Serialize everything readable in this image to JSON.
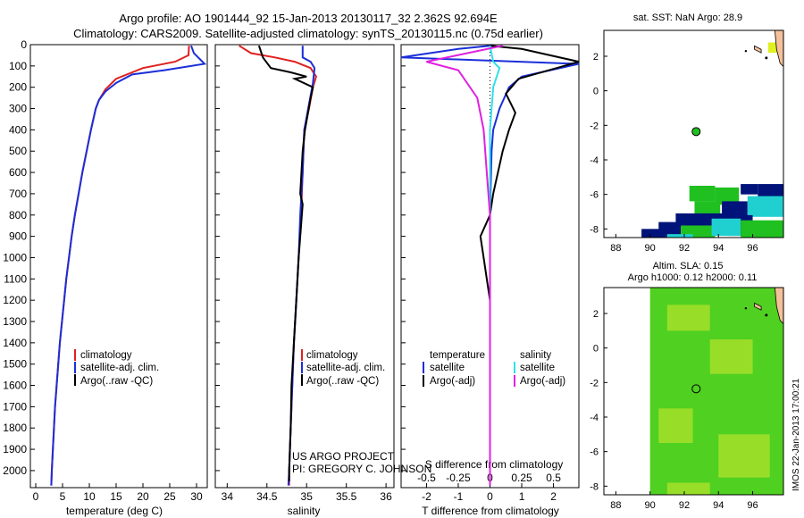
{
  "header": {
    "line1": "Argo profile: AO 1901444_92 15-Jan-2013 20130117_32 2.362S 92.694E",
    "line2": "Climatology: CARS2009. Satellite-adjusted climatology: synTS_20130115.nc (0.75d earlier)"
  },
  "credit": {
    "project": "US ARGO PROJECT",
    "pi": "PI: GREGORY C. JOHNSON",
    "imos": "IMOS 22-Jan-2013 17:00:21"
  },
  "colors": {
    "climatology": "#e02020",
    "satellite_clim": "#1a2fd8",
    "argo": "#000000",
    "salinity_sat": "#30e0e8",
    "salinity_argo": "#e020e0",
    "land": "#f5c09a",
    "sst_deep": "#00137a",
    "sst_green": "#20c020",
    "sst_cyan": "#20d0d0",
    "sla_yellow": "#c8e830",
    "sla_green": "#50d020",
    "marker": "#20c020"
  },
  "chart_data": [
    {
      "name": "temperature",
      "type": "line",
      "xlabel": "temperature (deg C)",
      "xlim": [
        -1,
        32
      ],
      "xticks": [
        "0",
        "5",
        "10",
        "15",
        "20",
        "25",
        "30"
      ],
      "xtick_values": [
        0,
        5,
        10,
        15,
        20,
        25,
        30
      ],
      "ylim": [
        0,
        2080
      ],
      "yticks": [
        "0",
        "100",
        "200",
        "300",
        "400",
        "500",
        "600",
        "700",
        "800",
        "900",
        "1000",
        "1100",
        "1200",
        "1300",
        "1400",
        "1500",
        "1600",
        "1700",
        "1800",
        "1900",
        "2000"
      ],
      "ytick_values": [
        0,
        100,
        200,
        300,
        400,
        500,
        600,
        700,
        800,
        900,
        1000,
        1100,
        1200,
        1300,
        1400,
        1500,
        1600,
        1700,
        1800,
        1900,
        2000
      ],
      "legend": [
        "climatology",
        "satellite-adj. clim.",
        "Argo(..raw -QC)"
      ],
      "series": [
        {
          "name": "climatology",
          "color": "climatology",
          "points": [
            [
              28.6,
              5
            ],
            [
              28.5,
              50
            ],
            [
              26,
              80
            ],
            [
              20,
              110
            ],
            [
              15,
              160
            ],
            [
              13,
              210
            ],
            [
              11.8,
              260
            ],
            [
              11.2,
              300
            ],
            [
              10.3,
              400
            ],
            [
              9.5,
              500
            ],
            [
              8.7,
              600
            ],
            [
              8,
              700
            ],
            [
              7.3,
              800
            ],
            [
              6.7,
              900
            ],
            [
              6.2,
              1000
            ],
            [
              5.7,
              1100
            ],
            [
              5.3,
              1200
            ],
            [
              4.9,
              1300
            ],
            [
              4.5,
              1400
            ],
            [
              4.2,
              1500
            ],
            [
              3.9,
              1600
            ],
            [
              3.6,
              1700
            ],
            [
              3.4,
              1800
            ],
            [
              3.2,
              1900
            ],
            [
              3,
              2000
            ],
            [
              2.9,
              2070
            ]
          ]
        },
        {
          "name": "satellite",
          "color": "satellite_clim",
          "points": [
            [
              29,
              5
            ],
            [
              29.5,
              40
            ],
            [
              31.5,
              90
            ],
            [
              24,
              120
            ],
            [
              18,
              140
            ],
            [
              15,
              180
            ],
            [
              13,
              220
            ],
            [
              11.8,
              260
            ],
            [
              11.2,
              300
            ],
            [
              10.3,
              400
            ],
            [
              9.5,
              500
            ],
            [
              8.7,
              600
            ],
            [
              8,
              700
            ],
            [
              7.3,
              800
            ],
            [
              6.7,
              900
            ],
            [
              6.2,
              1000
            ],
            [
              5.7,
              1100
            ],
            [
              5.3,
              1200
            ],
            [
              4.9,
              1300
            ],
            [
              4.5,
              1400
            ],
            [
              4.2,
              1500
            ],
            [
              3.9,
              1600
            ],
            [
              3.6,
              1700
            ],
            [
              3.4,
              1800
            ],
            [
              3.2,
              1900
            ],
            [
              3,
              2000
            ],
            [
              2.9,
              2070
            ]
          ]
        },
        {
          "name": "argo",
          "color": "argo",
          "points": []
        }
      ]
    },
    {
      "name": "salinity",
      "type": "line",
      "xlabel": "salinity",
      "xlim": [
        33.85,
        36.1
      ],
      "xticks": [
        "34",
        "34.5",
        "35",
        "35.5",
        "36"
      ],
      "xtick_values": [
        34,
        34.5,
        35,
        35.5,
        36
      ],
      "ylim": [
        0,
        2080
      ],
      "legend": [
        "climatology",
        "satellite-adj. clim.",
        "Argo(..raw -QC)"
      ],
      "series": [
        {
          "name": "climatology",
          "color": "climatology",
          "points": [
            [
              34.15,
              5
            ],
            [
              34.3,
              40
            ],
            [
              34.6,
              60
            ],
            [
              34.85,
              80
            ],
            [
              35.05,
              110
            ],
            [
              35.12,
              150
            ],
            [
              35.08,
              200
            ],
            [
              35.03,
              300
            ],
            [
              34.97,
              400
            ],
            [
              34.95,
              600
            ],
            [
              34.93,
              800
            ],
            [
              34.9,
              1000
            ],
            [
              34.87,
              1200
            ],
            [
              34.84,
              1400
            ],
            [
              34.82,
              1600
            ],
            [
              34.8,
              1800
            ],
            [
              34.78,
              2000
            ],
            [
              34.78,
              2070
            ]
          ]
        },
        {
          "name": "satellite",
          "color": "satellite_clim",
          "points": [
            [
              34.95,
              5
            ],
            [
              34.95,
              60
            ],
            [
              35.05,
              80
            ],
            [
              35.1,
              110
            ],
            [
              35.08,
              180
            ],
            [
              35.02,
              300
            ],
            [
              34.97,
              400
            ],
            [
              34.95,
              600
            ],
            [
              34.92,
              800
            ],
            [
              34.9,
              1000
            ],
            [
              34.87,
              1200
            ],
            [
              34.84,
              1400
            ],
            [
              34.82,
              1600
            ],
            [
              34.8,
              1800
            ],
            [
              34.78,
              2000
            ],
            [
              34.77,
              2070
            ]
          ]
        },
        {
          "name": "argo",
          "color": "argo",
          "points": [
            [
              34.4,
              5
            ],
            [
              34.45,
              60
            ],
            [
              34.55,
              110
            ],
            [
              34.8,
              130
            ],
            [
              35.0,
              150
            ],
            [
              34.85,
              160
            ],
            [
              35.08,
              200
            ],
            [
              35.05,
              250
            ],
            [
              34.98,
              400
            ],
            [
              34.95,
              500
            ],
            [
              34.92,
              700
            ],
            [
              34.95,
              750
            ],
            [
              34.9,
              1000
            ],
            [
              34.87,
              1200
            ],
            [
              34.84,
              1400
            ],
            [
              34.81,
              1600
            ],
            [
              34.8,
              1800
            ],
            [
              34.78,
              2000
            ],
            [
              34.78,
              2050
            ]
          ]
        }
      ]
    },
    {
      "name": "difference",
      "type": "line",
      "xlabel": "T difference from climatology",
      "x2label": "S difference from climatology",
      "xlim": [
        -2.8,
        2.8
      ],
      "xticks": [
        "-2",
        "-1",
        "0",
        "1",
        "2"
      ],
      "xtick_values": [
        -2,
        -1,
        0,
        1,
        2
      ],
      "x2ticks": [
        "-0.5",
        "-0.25",
        "0",
        "0.25",
        "0.5"
      ],
      "x2tick_values": [
        -0.5,
        -0.25,
        0,
        0.25,
        0.5
      ],
      "ylim": [
        0,
        2080
      ],
      "legend_titles": [
        "temperature",
        "salinity"
      ],
      "legend": [
        "satellite",
        "Argo(-adj)",
        "satellite",
        "Argo(-adj)"
      ],
      "series": [
        {
          "name": "temperature satellite",
          "color": "satellite_clim",
          "points": [
            [
              0,
              5
            ],
            [
              -1,
              20
            ],
            [
              -2.8,
              60
            ],
            [
              2.8,
              90
            ],
            [
              1,
              150
            ],
            [
              0.6,
              200
            ],
            [
              0.3,
              300
            ],
            [
              0.1,
              400
            ],
            [
              0.05,
              500
            ],
            [
              0,
              800
            ],
            [
              0,
              2070
            ]
          ]
        },
        {
          "name": "temperature argo",
          "color": "argo",
          "points": [
            [
              0,
              5
            ],
            [
              1,
              20
            ],
            [
              2.8,
              80
            ],
            [
              0.9,
              160
            ],
            [
              0.5,
              230
            ],
            [
              0.8,
              320
            ],
            [
              0.6,
              400
            ],
            [
              0.4,
              500
            ],
            [
              0.1,
              700
            ],
            [
              0,
              800
            ],
            [
              -0.3,
              900
            ],
            [
              -0.2,
              1000
            ],
            [
              -0.1,
              1100
            ],
            [
              0,
              1200
            ],
            [
              0,
              2070
            ]
          ]
        },
        {
          "name": "salinity satellite",
          "color": "salinity_sat",
          "points": [
            [
              0,
              5
            ],
            [
              0.1,
              80
            ],
            [
              0.3,
              110
            ],
            [
              0.1,
              200
            ],
            [
              0,
              400
            ],
            [
              0,
              2070
            ]
          ]
        },
        {
          "name": "salinity argo",
          "color": "salinity_argo",
          "points": [
            [
              0.4,
              5
            ],
            [
              -2,
              80
            ],
            [
              -1,
              120
            ],
            [
              -0.4,
              250
            ],
            [
              -0.2,
              400
            ],
            [
              -0.1,
              600
            ],
            [
              0,
              800
            ],
            [
              0,
              1000
            ],
            [
              0,
              1400
            ],
            [
              0,
              2070
            ]
          ]
        }
      ]
    },
    {
      "name": "sst_map",
      "type": "heatmap",
      "title": "sat. SST: NaN Argo: 28.9",
      "xlim": [
        87.3,
        97.8
      ],
      "ylim": [
        -8.5,
        3.5
      ],
      "xticks": [
        "88",
        "90",
        "92",
        "94",
        "96"
      ],
      "xtick_values": [
        88,
        90,
        92,
        94,
        96
      ],
      "yticks": [
        "2",
        "0",
        "-2",
        "-4",
        "-6",
        "-8"
      ],
      "ytick_values": [
        2,
        0,
        -2,
        -4,
        -6,
        -8
      ],
      "marker": [
        92.694,
        -2.362
      ]
    },
    {
      "name": "sla_map",
      "type": "heatmap",
      "title": "Altim. SLA: 0.15",
      "subtitle": "Argo h1000: 0.12 h2000: 0.11",
      "xlim": [
        87.3,
        97.8
      ],
      "ylim": [
        -8.5,
        3.5
      ],
      "xticks": [
        "88",
        "90",
        "92",
        "94",
        "96"
      ],
      "xtick_values": [
        88,
        90,
        92,
        94,
        96
      ],
      "yticks": [
        "2",
        "0",
        "-2",
        "-4",
        "-6",
        "-8"
      ],
      "ytick_values": [
        2,
        0,
        -2,
        -4,
        -6,
        -8
      ],
      "marker": [
        92.694,
        -2.362
      ]
    }
  ]
}
